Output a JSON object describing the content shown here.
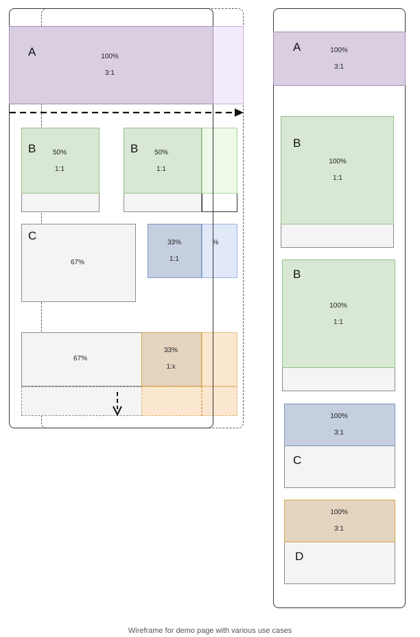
{
  "desktop": {
    "section_a": {
      "label": "A",
      "width": "100%",
      "ratio": "3:1"
    },
    "section_b_left": {
      "label": "B",
      "width": "50%",
      "ratio": "1:1"
    },
    "section_b_right": {
      "label": "B",
      "width": "50%",
      "ratio": "1:1"
    },
    "section_c": {
      "label": "C",
      "width": "67%"
    },
    "section_c_side": {
      "width": "33%",
      "ratio": "1:1",
      "overflow_fragment": "%"
    },
    "section_d": {
      "width_left": "67%",
      "width_right": "33%",
      "ratio_right": "1:x"
    }
  },
  "mobile": {
    "section_a": {
      "label": "A",
      "width": "100%",
      "ratio": "3:1"
    },
    "section_b1": {
      "label": "B",
      "width": "100%",
      "ratio": "1:1"
    },
    "section_b2": {
      "label": "B",
      "width": "100%",
      "ratio": "1:1"
    },
    "section_c": {
      "label": "C",
      "width": "100%",
      "ratio": "3:1"
    },
    "section_d": {
      "label": "D",
      "width": "100%",
      "ratio": "3:1"
    }
  },
  "caption": "Wireframe for demo page with various use cases",
  "colors": {
    "purple": "#d9cfe0",
    "green": "#d8e8d4",
    "blue": "#c5cfe0",
    "tan": "#e5d4c0",
    "grey": "#f4f4f4"
  }
}
